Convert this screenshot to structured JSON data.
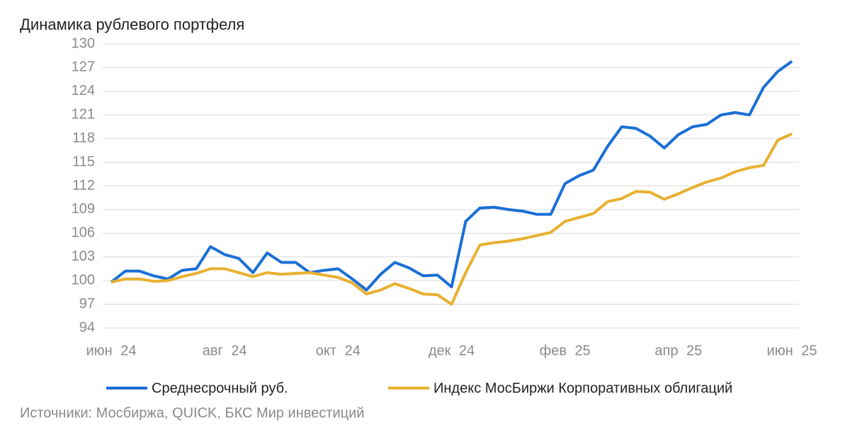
{
  "chart_data": {
    "type": "line",
    "title": "Динамика рублевого портфеля",
    "source": "Источники: Мосбиржа, QUICK, БКС Мир инвестиций",
    "categories": [
      "июн 24",
      null,
      null,
      null,
      null,
      null,
      null,
      null,
      "авг 24",
      null,
      null,
      null,
      null,
      null,
      null,
      null,
      "окт 24",
      null,
      null,
      null,
      null,
      null,
      null,
      null,
      "дек 24",
      null,
      null,
      null,
      null,
      null,
      null,
      null,
      "фев 25",
      null,
      null,
      null,
      null,
      null,
      null,
      null,
      "апр 25",
      null,
      null,
      null,
      null,
      null,
      null,
      null,
      "июн 25"
    ],
    "series": [
      {
        "name": "Среднесрочный руб.",
        "color": "#1a6fd6",
        "values": [
          99.8,
          101.2,
          101.2,
          100.6,
          100.2,
          101.3,
          101.5,
          104.3,
          103.3,
          102.8,
          101.0,
          103.5,
          102.3,
          102.3,
          101.0,
          101.3,
          101.5,
          100.2,
          98.8,
          100.8,
          102.3,
          101.6,
          100.6,
          100.7,
          99.2,
          107.5,
          109.2,
          109.3,
          109.0,
          108.8,
          108.4,
          108.4,
          112.3,
          113.3,
          114.0,
          117.0,
          119.5,
          119.3,
          118.3,
          116.8,
          118.5,
          119.5,
          119.8,
          121.0,
          121.3,
          121.0,
          124.5,
          126.5,
          127.8
        ]
      },
      {
        "name": "Индекс МосБиржи Корпоративных облигаций",
        "color": "#e8b030",
        "values": [
          99.8,
          100.2,
          100.2,
          99.9,
          100.0,
          100.5,
          100.9,
          101.5,
          101.5,
          101.0,
          100.5,
          101.0,
          100.8,
          100.9,
          101.0,
          100.7,
          100.4,
          99.7,
          98.3,
          98.8,
          99.6,
          99.0,
          98.3,
          98.2,
          97.0,
          101.0,
          104.5,
          104.8,
          105.0,
          105.3,
          105.7,
          106.1,
          107.5,
          108.0,
          108.5,
          110.0,
          110.4,
          111.3,
          111.2,
          110.3,
          111.0,
          111.8,
          112.5,
          113.0,
          113.8,
          114.3,
          114.6,
          117.8,
          118.6
        ]
      }
    ],
    "ylim": [
      94,
      130
    ],
    "yticks": [
      94,
      97,
      100,
      103,
      106,
      109,
      112,
      115,
      118,
      121,
      124,
      127,
      130
    ],
    "grid": true
  }
}
